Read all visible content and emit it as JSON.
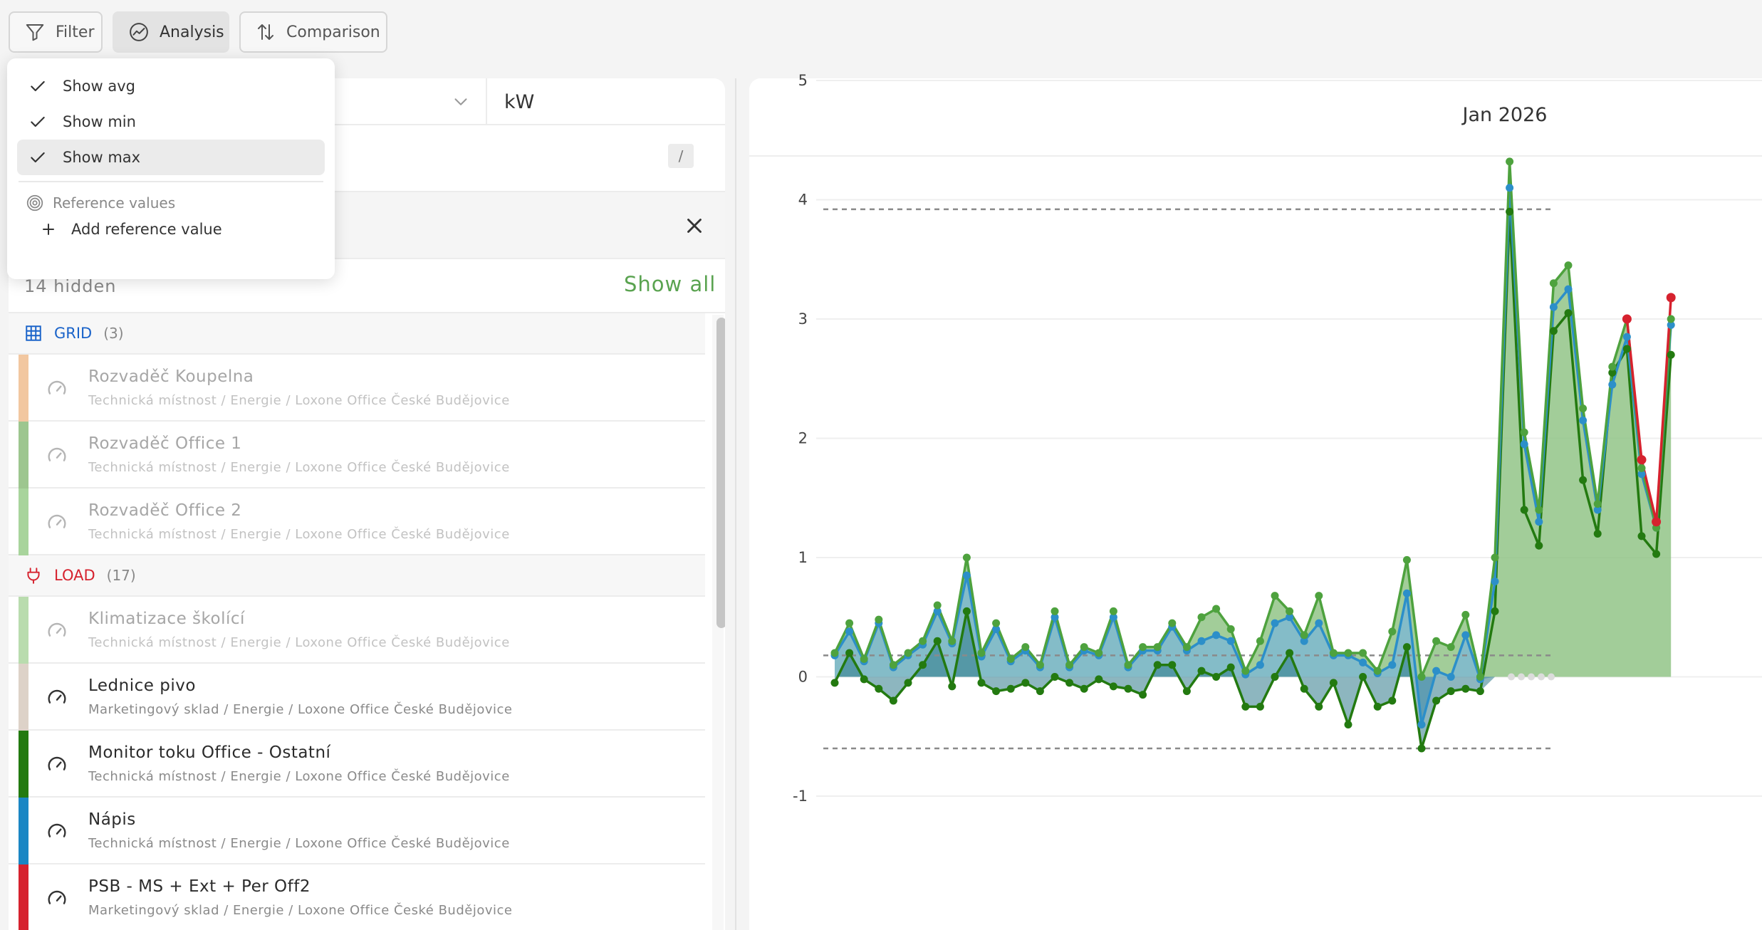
{
  "toolbar": {
    "filter_label": "Filter",
    "analysis_label": "Analysis",
    "comparison_label": "Comparison"
  },
  "menu": {
    "show_avg": "Show avg",
    "show_min": "Show min",
    "show_max": "Show max",
    "reference_header": "Reference values",
    "add_reference": "Add reference value"
  },
  "panel": {
    "unit": "kW",
    "search_shortcut": "/",
    "hidden_text": "14 hidden",
    "show_all": "Show all"
  },
  "groups": [
    {
      "label": "GRID",
      "count": "(3)",
      "color": "#1a63c9",
      "icon": "grid-icon",
      "items": [
        {
          "name": "Rozvaděč Koupelna",
          "path": "Technická místnost / Energie / Loxone Office České Budějovice",
          "color": "#f2c7a0",
          "dim": true
        },
        {
          "name": "Rozvaděč Office 1",
          "path": "Technická místnost / Energie / Loxone Office České Budějovice",
          "color": "#9dc68f",
          "dim": true
        },
        {
          "name": "Rozvaděč Office 2",
          "path": "Technická místnost / Energie / Loxone Office České Budějovice",
          "color": "#a8d49c",
          "dim": true
        }
      ]
    },
    {
      "label": "LOAD",
      "count": "(17)",
      "color": "#d6222e",
      "icon": "plug-icon",
      "items": [
        {
          "name": "Klimatizace školící",
          "path": "Technická místnost / Energie / Loxone Office České Budějovice",
          "color": "#b9dcae",
          "dim": true
        },
        {
          "name": "Lednice pivo",
          "path": "Marketingový sklad / Energie / Loxone Office České Budějovice",
          "color": "#ddd2c8",
          "dim": false
        },
        {
          "name": "Monitor toku Office - Ostatní",
          "path": "Technická místnost / Energie / Loxone Office České Budějovice",
          "color": "#237a10",
          "dim": false
        },
        {
          "name": "Nápis",
          "path": "Technická místnost / Energie / Loxone Office České Budějovice",
          "color": "#1a86c4",
          "dim": false
        },
        {
          "name": "PSB - MS + Ext + Per Off2",
          "path": "Marketingový sklad / Energie / Loxone Office České Budějovice",
          "color": "#d6222e",
          "dim": false
        }
      ]
    }
  ],
  "chart_data": {
    "type": "area",
    "title": "Jan 2026",
    "ylim": [
      -1,
      5
    ],
    "yticks": [
      -1,
      0,
      1,
      2,
      3,
      4,
      5
    ],
    "grid": true,
    "reference_lines": [
      3.92,
      0.18,
      -0.6
    ],
    "series": [
      {
        "color": "#4ea23e",
        "values": [
          0.2,
          0.45,
          0.15,
          0.48,
          0.1,
          0.2,
          0.3,
          0.6,
          0.3,
          1.0,
          0.2,
          0.45,
          0.15,
          0.25,
          0.1,
          0.55,
          0.1,
          0.25,
          0.2,
          0.55,
          0.1,
          0.25,
          0.25,
          0.45,
          0.25,
          0.5,
          0.57,
          0.4,
          0.05,
          0.3,
          0.68,
          0.55,
          0.35,
          0.68,
          0.2,
          0.2,
          0.2,
          0.05,
          0.38,
          0.98,
          0.0,
          0.3,
          0.25,
          0.52,
          0.0,
          1.0,
          4.32,
          2.05,
          1.4,
          3.3,
          3.45,
          2.25,
          1.45,
          2.6,
          3.0,
          1.75,
          1.25,
          3.0
        ],
        "tail_color": "#d6222e",
        "tail_from": 54,
        "tail_values": [
          3.0,
          1.82,
          1.3,
          3.18
        ]
      },
      {
        "color": "#2c8fc9",
        "values": [
          0.18,
          0.38,
          0.13,
          0.45,
          0.08,
          0.18,
          0.27,
          0.55,
          0.28,
          0.85,
          0.17,
          0.4,
          0.13,
          0.22,
          0.08,
          0.5,
          0.08,
          0.22,
          0.18,
          0.5,
          0.08,
          0.22,
          0.22,
          0.42,
          0.22,
          0.3,
          0.35,
          0.3,
          0.02,
          0.1,
          0.45,
          0.5,
          0.3,
          0.45,
          0.18,
          0.18,
          0.12,
          0.03,
          0.1,
          0.7,
          -0.4,
          0.05,
          0.0,
          0.35,
          -0.02,
          0.8,
          4.1,
          1.95,
          1.3,
          3.1,
          3.25,
          2.15,
          1.4,
          2.45,
          2.85,
          1.7,
          1.25,
          2.95
        ]
      },
      {
        "color": "#237a10",
        "values": [
          -0.05,
          0.2,
          -0.02,
          -0.1,
          -0.2,
          -0.05,
          0.1,
          0.3,
          -0.08,
          0.55,
          -0.05,
          -0.12,
          -0.1,
          -0.05,
          -0.12,
          0.0,
          -0.05,
          -0.1,
          -0.02,
          -0.08,
          -0.1,
          -0.15,
          0.1,
          0.1,
          -0.12,
          0.05,
          0.0,
          0.08,
          -0.25,
          -0.25,
          0.0,
          0.2,
          -0.1,
          -0.25,
          -0.05,
          -0.4,
          0.0,
          -0.25,
          -0.2,
          0.25,
          -0.6,
          -0.2,
          -0.12,
          -0.1,
          -0.12,
          0.55,
          3.9,
          1.4,
          1.1,
          2.9,
          3.05,
          1.65,
          1.2,
          2.55,
          2.75,
          1.18,
          1.03,
          2.7
        ]
      }
    ]
  }
}
